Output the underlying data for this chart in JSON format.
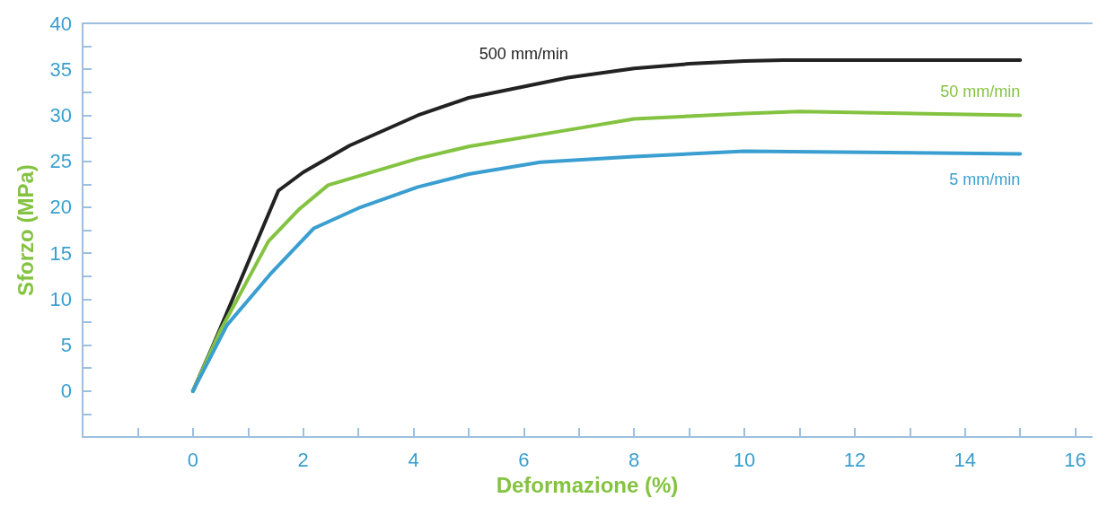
{
  "chart_data": {
    "type": "line",
    "xlabel": "Deformazione (%)",
    "ylabel": "Sforzo (MPa)",
    "xlim": [
      -2,
      16.3
    ],
    "ylim": [
      -5,
      40
    ],
    "xticks": [
      {
        "value": -2,
        "label": null
      },
      {
        "value": -1,
        "label": null
      },
      0,
      {
        "value": 1,
        "label": null
      },
      2,
      {
        "value": 3,
        "label": null
      },
      4,
      {
        "value": 5,
        "label": null
      },
      6,
      {
        "value": 7,
        "label": null
      },
      8,
      {
        "value": 9,
        "label": null
      },
      10,
      {
        "value": 11,
        "label": null
      },
      12,
      {
        "value": 13,
        "label": null
      },
      14,
      {
        "value": 15,
        "label": null
      },
      16
    ],
    "yticks": [
      {
        "value": -5,
        "label": null
      },
      {
        "value": -2.5,
        "label": null
      },
      0,
      {
        "value": 2.5,
        "label": null
      },
      5,
      {
        "value": 7.5,
        "label": null
      },
      10,
      {
        "value": 12.5,
        "label": null
      },
      15,
      {
        "value": 17.5,
        "label": null
      },
      20,
      {
        "value": 22.5,
        "label": null
      },
      25,
      {
        "value": 27.5,
        "label": null
      },
      30,
      {
        "value": 32.5,
        "label": null
      },
      35,
      {
        "value": 37.5,
        "label": null
      },
      40
    ],
    "grid": false,
    "legend": false,
    "marker": "none",
    "line_style": "solid",
    "series": [
      {
        "name": "500 mm/min",
        "color": "#222222",
        "x": [
          0,
          0.36,
          1.55,
          2,
          2.84,
          4.08,
          5,
          6.8,
          8,
          9,
          10,
          10.7,
          15
        ],
        "values": [
          0,
          4.9,
          21.8,
          23.8,
          26.7,
          30,
          31.9,
          34.1,
          35.1,
          35.6,
          35.9,
          36,
          36
        ]
      },
      {
        "name": "50 mm/min",
        "color": "#84c341",
        "x": [
          0,
          0.49,
          1.37,
          1.93,
          2.45,
          4.08,
          5,
          6.8,
          8,
          10,
          11,
          15
        ],
        "values": [
          0,
          6.5,
          16.3,
          19.8,
          22.4,
          25.3,
          26.6,
          28.4,
          29.6,
          30.2,
          30.4,
          30
        ]
      },
      {
        "name": "5 mm/min",
        "color": "#3a9fd0",
        "x": [
          0,
          0.62,
          1.4,
          2.19,
          3,
          4.08,
          5,
          6.3,
          8,
          10,
          15
        ],
        "values": [
          0,
          7.2,
          12.7,
          17.7,
          19.9,
          22.2,
          23.6,
          24.9,
          25.5,
          26.1,
          25.8
        ]
      }
    ]
  }
}
